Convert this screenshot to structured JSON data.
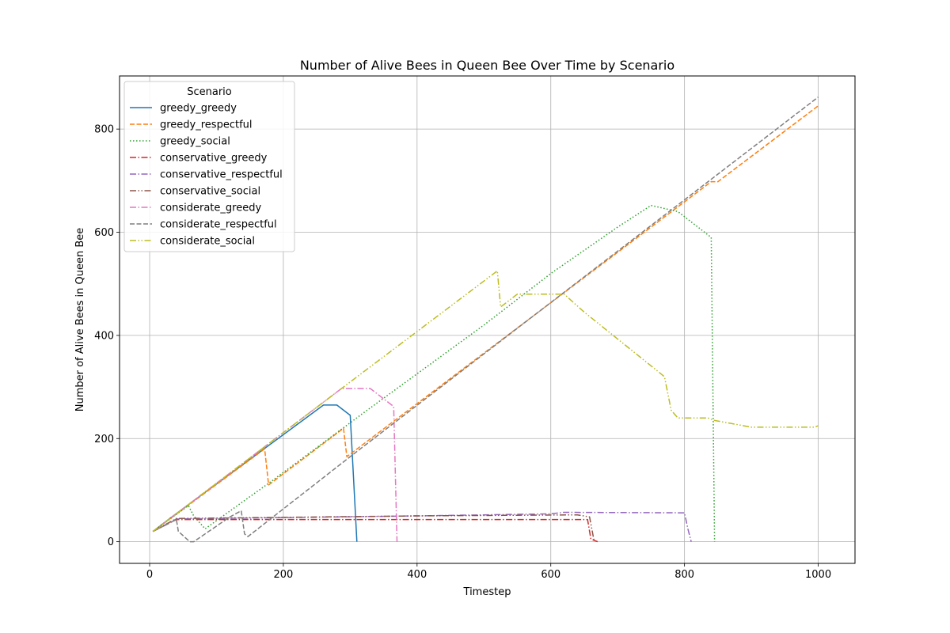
{
  "chart_data": {
    "type": "line",
    "title": "Number of Alive Bees in Queen Bee Over Time by Scenario",
    "xlabel": "Timestep",
    "ylabel": "Number of Alive Bees in Queen Bee",
    "xlim": [
      -45,
      1055
    ],
    "ylim": [
      -42,
      903
    ],
    "xticks": [
      0,
      200,
      400,
      600,
      800,
      1000
    ],
    "yticks": [
      0,
      200,
      400,
      600,
      800
    ],
    "grid": true,
    "legend": {
      "title": "Scenario",
      "placement": "upper-left"
    },
    "series": [
      {
        "name": "greedy_greedy",
        "color": "#1f77b4",
        "dash": "solid",
        "points": [
          [
            5,
            20
          ],
          [
            30,
            45
          ],
          [
            260,
            265
          ],
          [
            280,
            265
          ],
          [
            300,
            245
          ],
          [
            310,
            0
          ]
        ]
      },
      {
        "name": "greedy_respectful",
        "color": "#ff7f0e",
        "dash": "dashed",
        "points": [
          [
            5,
            20
          ],
          [
            172,
            180
          ],
          [
            178,
            110
          ],
          [
            290,
            220
          ],
          [
            295,
            165
          ],
          [
            840,
            698
          ],
          [
            850,
            698
          ],
          [
            1000,
            845
          ]
        ]
      },
      {
        "name": "greedy_social",
        "color": "#2ca02c",
        "dash": "dotted",
        "points": [
          [
            5,
            20
          ],
          [
            58,
            70
          ],
          [
            66,
            50
          ],
          [
            83,
            25
          ],
          [
            183,
            118
          ],
          [
            320,
            250
          ],
          [
            500,
            420
          ],
          [
            600,
            520
          ],
          [
            700,
            610
          ],
          [
            750,
            652
          ],
          [
            790,
            640
          ],
          [
            840,
            590
          ],
          [
            845,
            0
          ]
        ]
      },
      {
        "name": "conservative_greedy",
        "color": "#d62728",
        "dash": "dashdot",
        "points": [
          [
            5,
            20
          ],
          [
            40,
            43
          ],
          [
            655,
            43
          ],
          [
            660,
            5
          ],
          [
            670,
            0
          ]
        ]
      },
      {
        "name": "conservative_respectful",
        "color": "#9467bd",
        "dash": "dashdot",
        "points": [
          [
            5,
            20
          ],
          [
            40,
            44
          ],
          [
            400,
            50
          ],
          [
            600,
            54
          ],
          [
            620,
            57
          ],
          [
            800,
            56
          ],
          [
            805,
            25
          ],
          [
            810,
            0
          ]
        ]
      },
      {
        "name": "conservative_social",
        "color": "#8c564b",
        "dash": "dashdotdot",
        "points": [
          [
            5,
            20
          ],
          [
            40,
            45
          ],
          [
            400,
            50
          ],
          [
            640,
            52
          ],
          [
            658,
            48
          ],
          [
            665,
            0
          ]
        ]
      },
      {
        "name": "considerate_greedy",
        "color": "#e377c2",
        "dash": "dashdot",
        "points": [
          [
            5,
            20
          ],
          [
            287,
            297
          ],
          [
            330,
            297
          ],
          [
            365,
            262
          ],
          [
            370,
            0
          ]
        ]
      },
      {
        "name": "considerate_respectful",
        "color": "#7f7f7f",
        "dash": "dashed",
        "points": [
          [
            5,
            20
          ],
          [
            40,
            43
          ],
          [
            43,
            20
          ],
          [
            60,
            0
          ],
          [
            66,
            0
          ],
          [
            120,
            48
          ],
          [
            137,
            60
          ],
          [
            142,
            15
          ],
          [
            147,
            10
          ],
          [
            300,
            165
          ],
          [
            1000,
            862
          ]
        ]
      },
      {
        "name": "considerate_social",
        "color": "#bcbd22",
        "dash": "dashdotdot",
        "points": [
          [
            5,
            20
          ],
          [
            290,
            300
          ],
          [
            520,
            525
          ],
          [
            525,
            455
          ],
          [
            550,
            480
          ],
          [
            620,
            480
          ],
          [
            650,
            445
          ],
          [
            770,
            320
          ],
          [
            780,
            255
          ],
          [
            790,
            240
          ],
          [
            835,
            240
          ],
          [
            845,
            235
          ],
          [
            875,
            228
          ],
          [
            900,
            222
          ],
          [
            995,
            222
          ],
          [
            1000,
            225
          ]
        ]
      }
    ]
  }
}
